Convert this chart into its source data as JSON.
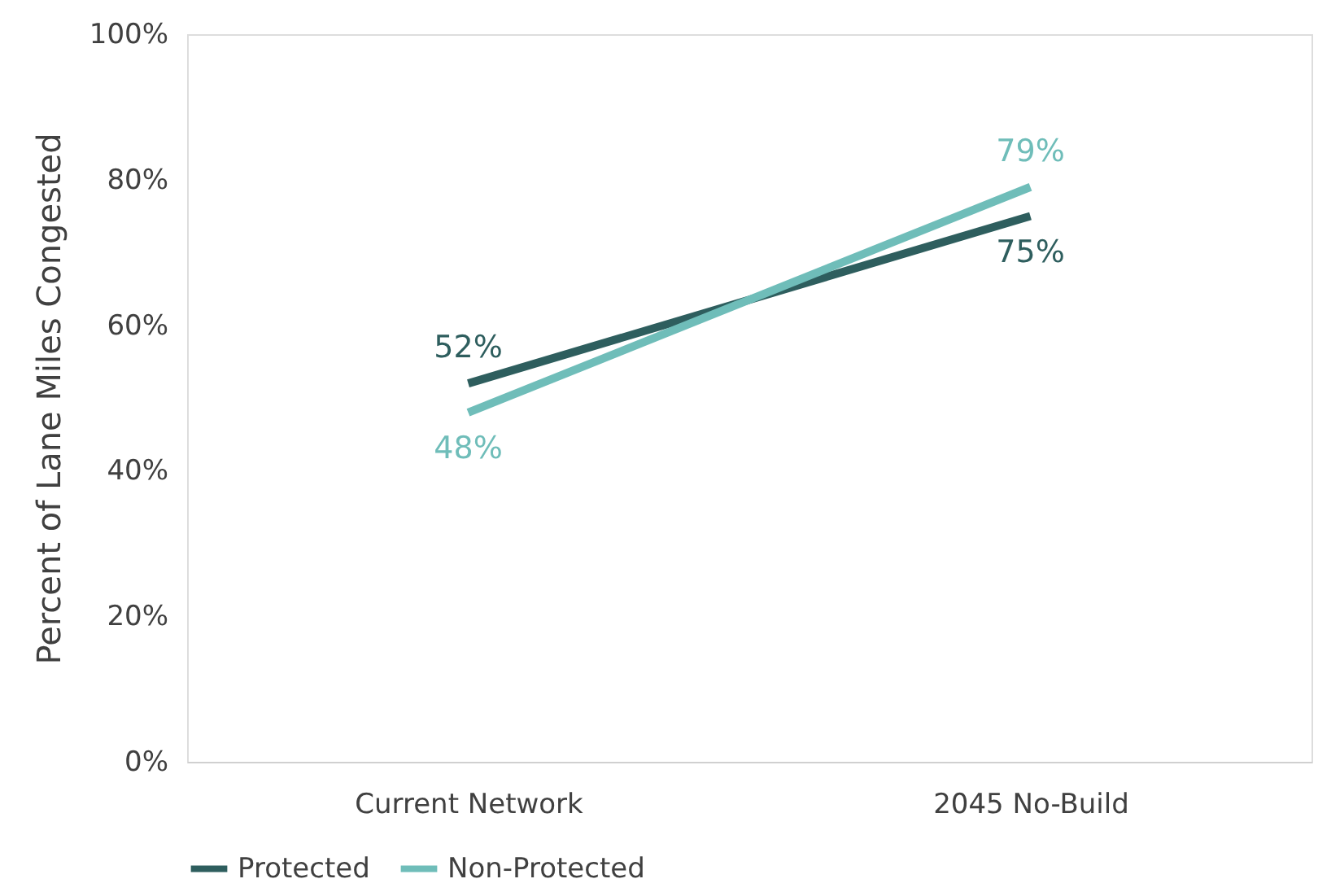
{
  "chart_data": {
    "type": "line",
    "ylabel": "Percent of Lane Miles Congested",
    "categories": [
      "Current Network",
      "2045 No-Build"
    ],
    "series": [
      {
        "name": "Protected",
        "color": "#2e5e5e",
        "values": [
          52,
          75
        ],
        "value_labels": [
          "52%",
          "75%"
        ]
      },
      {
        "name": "Non-Protected",
        "color": "#6fbdb9",
        "values": [
          48,
          79
        ],
        "value_labels": [
          "48%",
          "79%"
        ]
      }
    ],
    "ylim": [
      0,
      100
    ],
    "yticks": [
      {
        "value": 0,
        "label": "0%"
      },
      {
        "value": 20,
        "label": "20%"
      },
      {
        "value": 40,
        "label": "40%"
      },
      {
        "value": 60,
        "label": "60%"
      },
      {
        "value": 80,
        "label": "80%"
      },
      {
        "value": 100,
        "label": "100%"
      }
    ],
    "grid": false,
    "legend": "bottom",
    "marker": "none",
    "line_style": "solid"
  }
}
